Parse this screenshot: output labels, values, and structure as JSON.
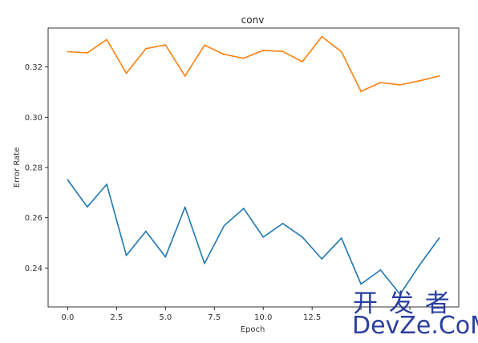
{
  "chart_data": {
    "type": "line",
    "title": "conv",
    "xlabel": "Epoch",
    "ylabel": "Error Rate",
    "xlim": [
      -1,
      20
    ],
    "ylim": [
      0.2245,
      0.3355
    ],
    "xticks": [
      0.0,
      2.5,
      5.0,
      7.5,
      10.0,
      12.5,
      15.0,
      17.5
    ],
    "xtick_labels": [
      "0.0",
      "2.5",
      "5.0",
      "7.5",
      "10.0",
      "12.5",
      "",
      ""
    ],
    "yticks": [
      0.24,
      0.26,
      0.28,
      0.3,
      0.32
    ],
    "ytick_labels": [
      "0.24",
      "0.26",
      "0.28",
      "0.30",
      "0.32"
    ],
    "grid": false,
    "x": [
      0,
      1,
      2,
      3,
      4,
      5,
      6,
      7,
      8,
      9,
      10,
      11,
      12,
      13,
      14,
      15,
      16,
      17,
      18,
      19
    ],
    "series": [
      {
        "color": "#1f77b4",
        "values": [
          0.2751,
          0.2643,
          0.2733,
          0.245,
          0.2546,
          0.2444,
          0.2642,
          0.2418,
          0.2568,
          0.2637,
          0.2523,
          0.2577,
          0.2523,
          0.2436,
          0.2519,
          0.2336,
          0.2392,
          0.2295,
          0.2412,
          0.2519
        ]
      },
      {
        "color": "#ff7f0e",
        "values": [
          0.3261,
          0.3256,
          0.3309,
          0.3175,
          0.3273,
          0.3288,
          0.3164,
          0.3287,
          0.325,
          0.3235,
          0.3266,
          0.3262,
          0.3221,
          0.3321,
          0.3261,
          0.3103,
          0.3138,
          0.3129,
          0.3145,
          0.3164
        ]
      }
    ]
  },
  "watermark": {
    "line1": "开 发 者",
    "line2": "DevZe.CoM"
  }
}
